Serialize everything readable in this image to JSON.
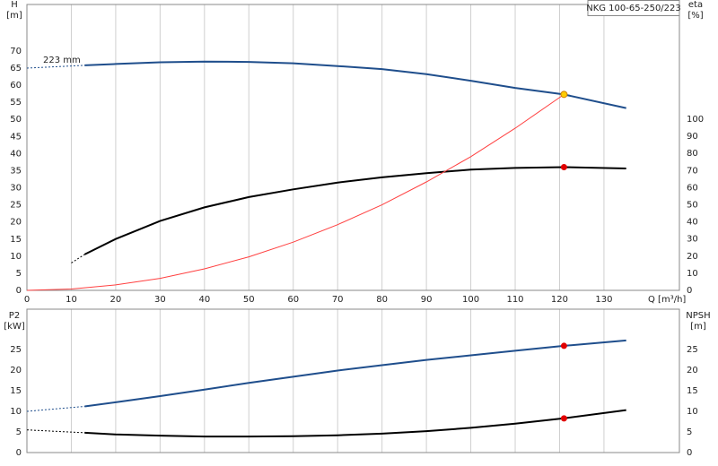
{
  "chart_data": [
    {
      "type": "line",
      "title": "NKG 100-65-250/223",
      "annotation": "223 mm",
      "ylabel": [
        "H",
        "[m]"
      ],
      "y2label": [
        "eta",
        "[%]"
      ],
      "xlabel": "Q [m³/h]",
      "xlim": [
        0,
        147
      ],
      "xticks": [
        0,
        10,
        20,
        30,
        40,
        50,
        60,
        70,
        80,
        90,
        100,
        110,
        120,
        130
      ],
      "show_xtick_labels": true,
      "ylim": [
        0,
        83.6
      ],
      "yticks": [
        0,
        5,
        10,
        15,
        20,
        25,
        30,
        35,
        40,
        45,
        50,
        55,
        60,
        65,
        70
      ],
      "y2lim": [
        0,
        167
      ],
      "y2ticks": [
        0,
        10,
        20,
        30,
        40,
        50,
        60,
        70,
        80,
        90,
        100
      ],
      "grid": true,
      "series": [
        {
          "color": "#1f4e8c",
          "style": "dashed",
          "x": [
            0,
            13
          ],
          "values": [
            65,
            65.8
          ]
        },
        {
          "color": "#1f4e8c",
          "style": "solid",
          "x": [
            13,
            20,
            30,
            40,
            50,
            60,
            70,
            80,
            90,
            100,
            110,
            121,
            135
          ],
          "values": [
            65.8,
            66.2,
            66.7,
            66.9,
            66.8,
            66.4,
            65.6,
            64.7,
            63.2,
            61.3,
            59.2,
            57.3,
            53.3
          ]
        },
        {
          "color": "#000000",
          "style": "dashed",
          "axis": "y2",
          "x": [
            10,
            13
          ],
          "values": [
            16,
            21
          ]
        },
        {
          "color": "#000000",
          "style": "solid",
          "axis": "y2",
          "x": [
            13,
            20,
            30,
            40,
            50,
            60,
            70,
            80,
            90,
            100,
            110,
            121,
            135
          ],
          "values": [
            21,
            30,
            40.5,
            48.5,
            54.5,
            59,
            63,
            66,
            68.5,
            70.5,
            71.5,
            72,
            71.2
          ]
        },
        {
          "color": "#ff4040",
          "style": "thin",
          "x": [
            0,
            10,
            20,
            30,
            40,
            50,
            60,
            70,
            80,
            90,
            100,
            110,
            121
          ],
          "values": [
            0,
            0.4,
            1.6,
            3.5,
            6.3,
            9.8,
            14.1,
            19.2,
            25,
            31.7,
            39.1,
            47.4,
            57.3
          ]
        }
      ],
      "points": [
        {
          "x": 121,
          "y": 57.3,
          "color": "#ffcc00"
        },
        {
          "x": 121,
          "y": 72,
          "axis": "y2",
          "color": "#e00000"
        }
      ]
    },
    {
      "type": "line",
      "ylabel": [
        "P2",
        "[kW]"
      ],
      "y2label": [
        "NPSH",
        "[m]"
      ],
      "xlim": [
        0,
        147
      ],
      "xticks": [
        0,
        10,
        20,
        30,
        40,
        50,
        60,
        70,
        80,
        90,
        100,
        110,
        120,
        130
      ],
      "show_xtick_labels": false,
      "ylim": [
        0,
        34.8
      ],
      "yticks": [
        0,
        5,
        10,
        15,
        20,
        25
      ],
      "y2lim": [
        0,
        34.8
      ],
      "y2ticks": [
        0,
        5,
        10,
        15,
        20,
        25
      ],
      "grid": true,
      "series": [
        {
          "color": "#1f4e8c",
          "style": "dashed",
          "x": [
            0,
            13
          ],
          "values": [
            10,
            11.2
          ]
        },
        {
          "color": "#1f4e8c",
          "style": "solid",
          "x": [
            13,
            20,
            30,
            40,
            50,
            60,
            70,
            80,
            90,
            100,
            110,
            121,
            135
          ],
          "values": [
            11.2,
            12.2,
            13.7,
            15.3,
            16.9,
            18.4,
            19.9,
            21.2,
            22.5,
            23.6,
            24.7,
            25.9,
            27.2
          ]
        },
        {
          "color": "#000000",
          "style": "dashed",
          "axis": "y2",
          "x": [
            0,
            13
          ],
          "values": [
            5.5,
            4.8
          ]
        },
        {
          "color": "#000000",
          "style": "solid",
          "axis": "y2",
          "x": [
            13,
            20,
            30,
            40,
            50,
            60,
            70,
            80,
            90,
            100,
            110,
            121,
            135
          ],
          "values": [
            4.8,
            4.4,
            4.1,
            3.9,
            3.9,
            3.95,
            4.2,
            4.6,
            5.2,
            6.0,
            7.0,
            8.3,
            10.3
          ]
        }
      ],
      "points": [
        {
          "x": 121,
          "y": 25.9,
          "color": "#e00000"
        },
        {
          "x": 121,
          "y": 8.3,
          "axis": "y2",
          "color": "#e00000"
        }
      ]
    }
  ]
}
